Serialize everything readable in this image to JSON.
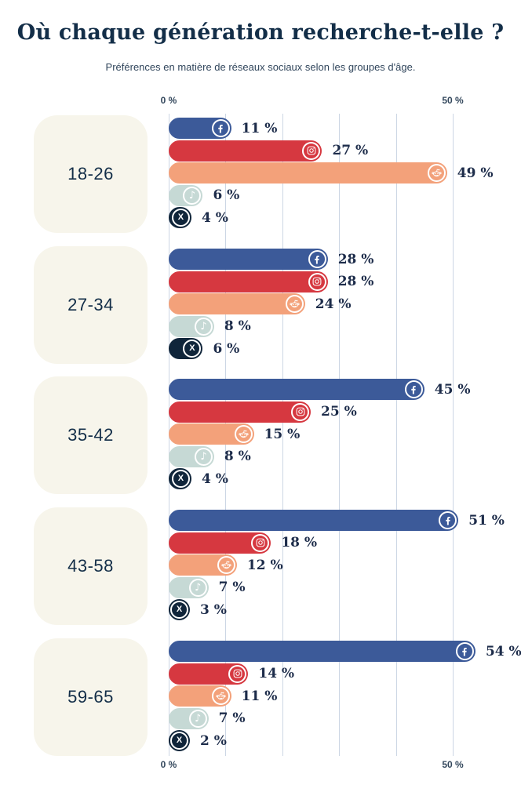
{
  "chart_data": {
    "type": "bar",
    "orientation": "horizontal",
    "title": "Où chaque génération recherche-t-elle ?",
    "subtitle": "Préférences en matière de réseaux sociaux selon les groupes d'âge.",
    "categories": [
      "18-26",
      "27-34",
      "35-42",
      "43-58",
      "59-65"
    ],
    "series": [
      {
        "name": "Facebook",
        "icon": "facebook-icon",
        "color": "#3c5a99",
        "values": [
          11,
          28,
          45,
          51,
          54
        ]
      },
      {
        "name": "Instagram",
        "icon": "instagram-icon",
        "color": "#d63840",
        "values": [
          27,
          28,
          25,
          18,
          14
        ]
      },
      {
        "name": "Reddit",
        "icon": "reddit-icon",
        "color": "#f3a17a",
        "values": [
          49,
          24,
          15,
          12,
          11
        ]
      },
      {
        "name": "TikTok",
        "icon": "tiktok-icon",
        "color": "#c6d9d5",
        "values": [
          6,
          8,
          8,
          7,
          7
        ]
      },
      {
        "name": "X",
        "icon": "x-icon",
        "color": "#10253a",
        "values": [
          4,
          6,
          4,
          3,
          2
        ]
      }
    ],
    "xlim": [
      0,
      50
    ],
    "gridline_step": 10,
    "axis_ticks": [
      {
        "label": "0 %",
        "value": 0
      },
      {
        "label": "50 %",
        "value": 50
      }
    ],
    "tick_rows": [
      "top",
      "bottom"
    ],
    "value_suffix": " %",
    "grid": true,
    "legend_position": "none",
    "colors": {
      "background": "#ffffff",
      "title_text": "#132e48",
      "subtitle_text": "#31465c",
      "age_card_bg": "#f7f5eb",
      "age_text": "#132e48",
      "gridline": "#ccd6e4",
      "tick_text": "#33475c",
      "value_text": "#1d2c4a",
      "icon_ring": "#ffffff"
    }
  }
}
